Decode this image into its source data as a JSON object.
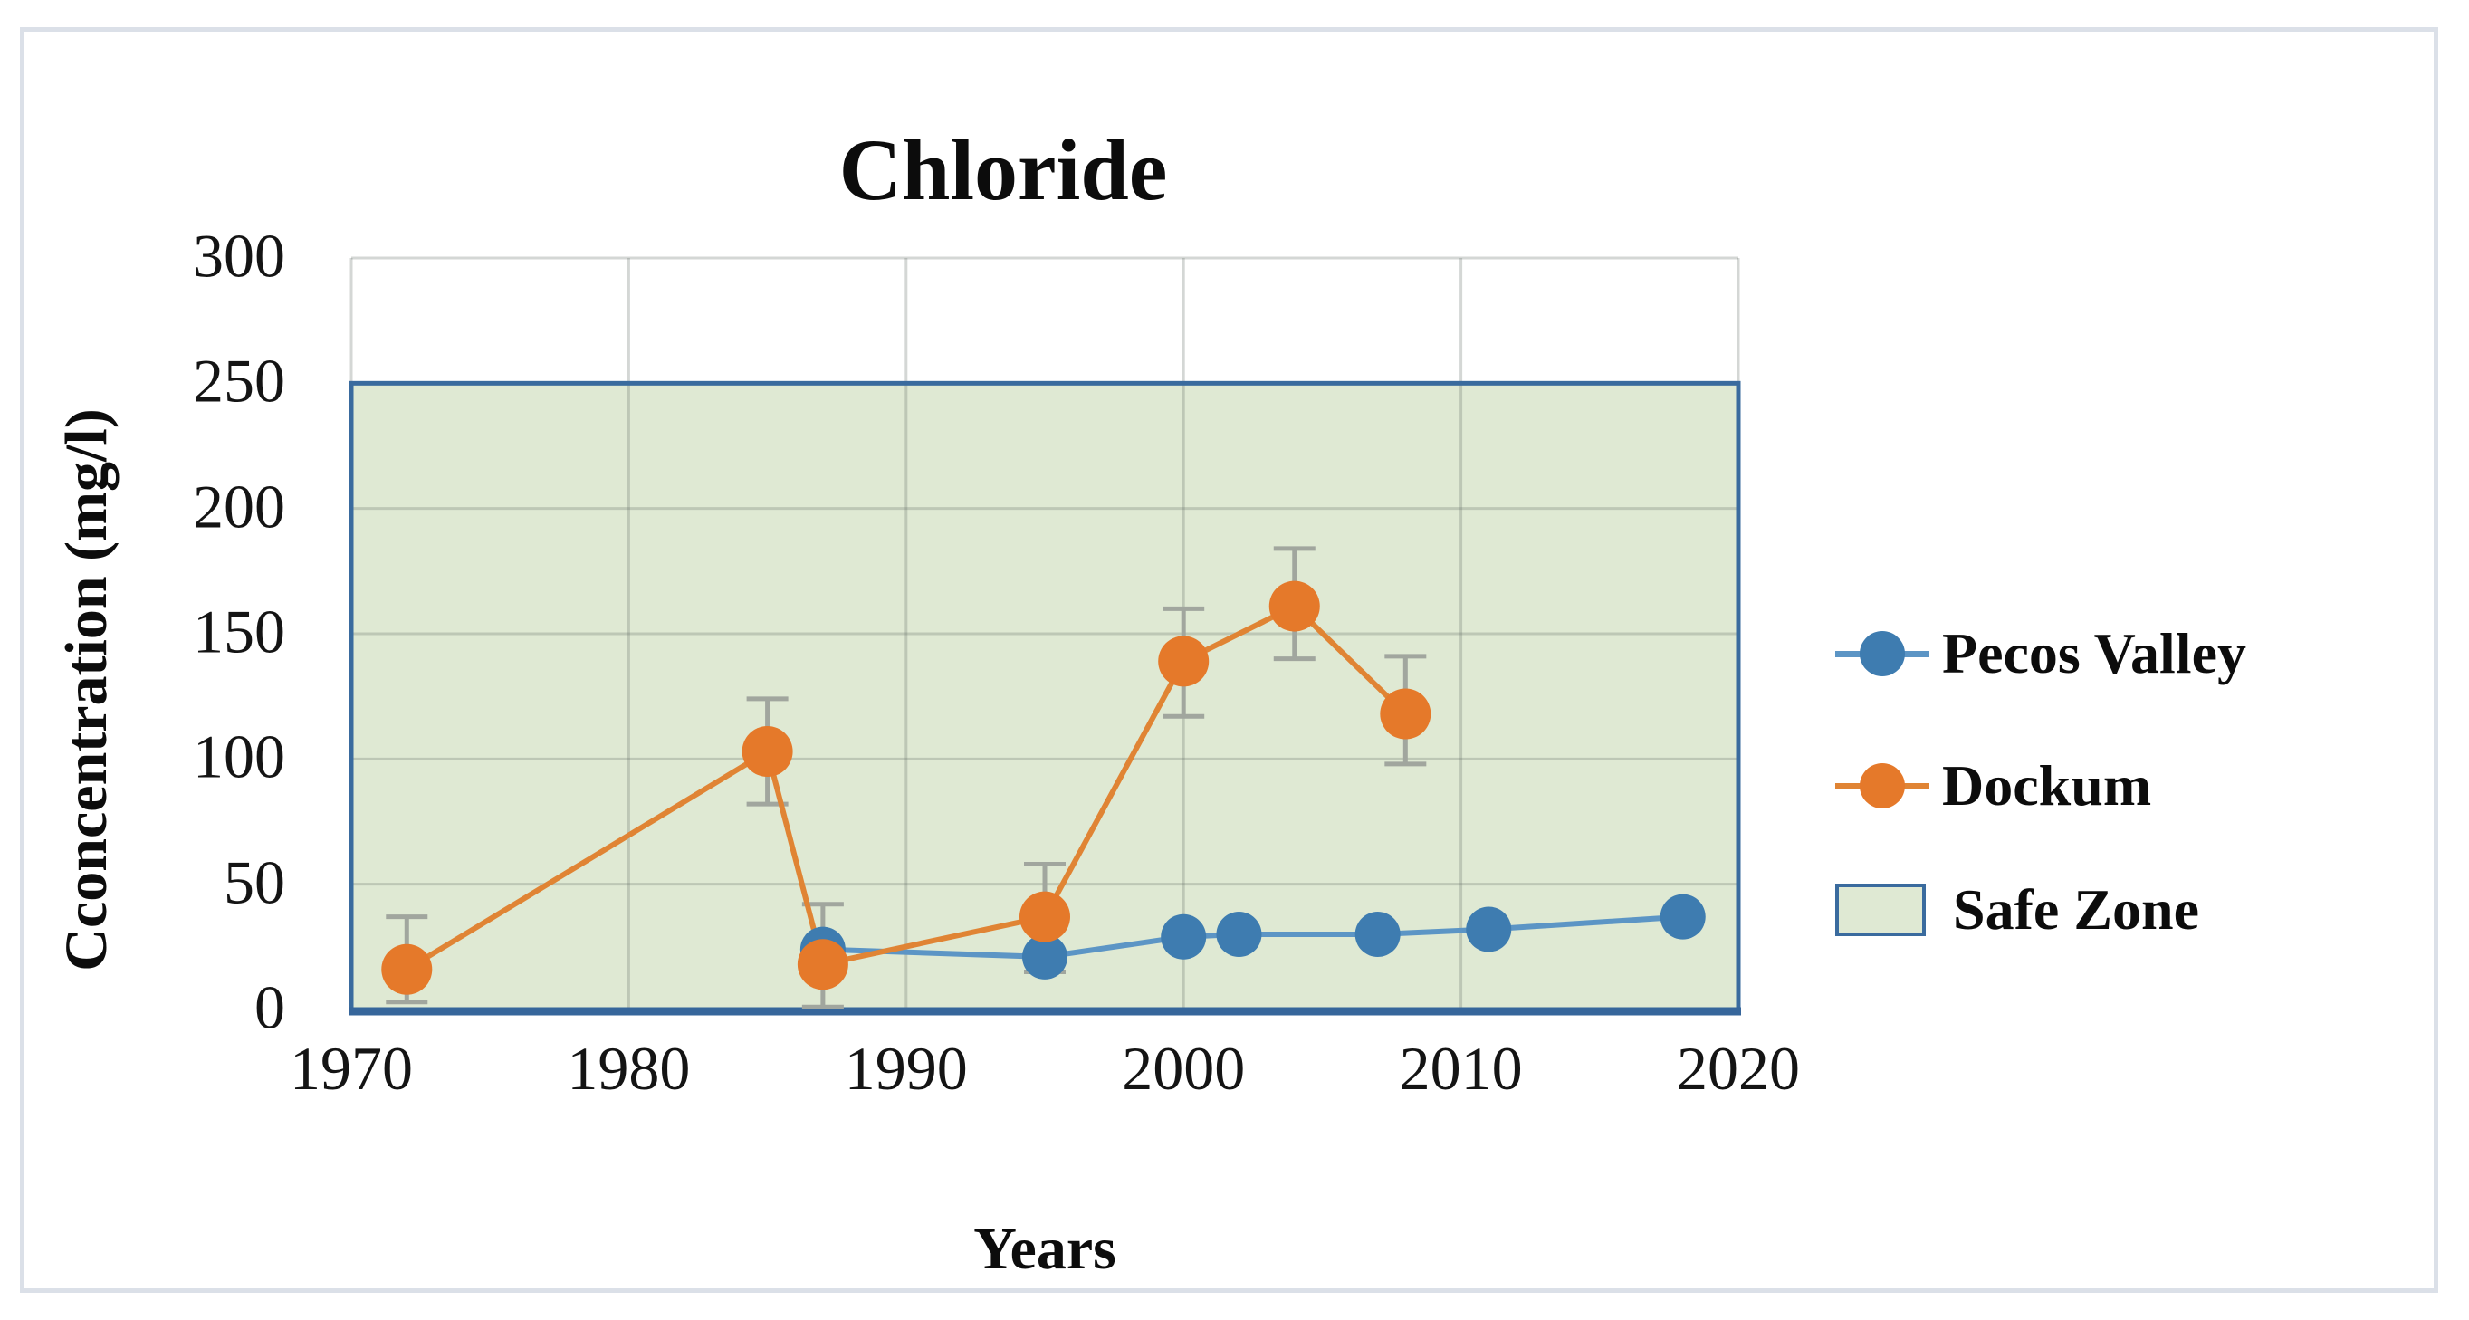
{
  "window": {
    "background": "#ffffff",
    "frame_color": "#dbe0e8"
  },
  "title": "Chloride",
  "axis_titles": {
    "x": "Years",
    "y": "Cconcentration (mg/l)"
  },
  "legend": {
    "position": "right",
    "items": [
      {
        "label": "Pecos Valley",
        "type": "line-marker"
      },
      {
        "label": "Dockum",
        "type": "line-marker"
      },
      {
        "label": "Safe Zone",
        "type": "box"
      }
    ]
  },
  "colors": {
    "pecos_line": "#5c95c5",
    "pecos_marker": "#3e7cb0",
    "dockum_line": "#e08434",
    "dockum_marker": "#e5792a",
    "safe_zone_fill": "#dfe9d3",
    "safe_zone_border": "#3a6b9e",
    "axis_line": "#36669b",
    "gridline": "rgba(100,110,105,0.28)",
    "error_bar": "#a1a69e",
    "text": "#0c0c0c"
  },
  "chart_data": {
    "type": "line",
    "title": "Chloride",
    "xlabel": "Years",
    "ylabel": "Cconcentration (mg/l)",
    "xlim": [
      1970,
      2020
    ],
    "ylim": [
      0,
      300
    ],
    "x_ticks": [
      1970,
      1980,
      1990,
      2000,
      2010,
      2020
    ],
    "y_ticks": [
      0,
      50,
      100,
      150,
      200,
      250,
      300
    ],
    "grid": true,
    "legend_position": "right",
    "safe_zone": {
      "ymin": 0,
      "ymax": 250,
      "label": "Safe Zone"
    },
    "series": [
      {
        "name": "Pecos Valley",
        "x": [
          1987,
          1995,
          2000,
          2002,
          2007,
          2011,
          2018
        ],
        "y": [
          24,
          21,
          29,
          30,
          30,
          32,
          37
        ]
      },
      {
        "name": "Dockum",
        "x": [
          1972,
          1985,
          1987,
          1995,
          2000,
          2004,
          2008
        ],
        "y": [
          16,
          103,
          18,
          37,
          139,
          161,
          118
        ],
        "err_up": [
          21,
          21,
          24,
          21,
          21,
          23,
          23
        ],
        "err_down": [
          13,
          21,
          17,
          22,
          22,
          21,
          20
        ]
      }
    ]
  }
}
